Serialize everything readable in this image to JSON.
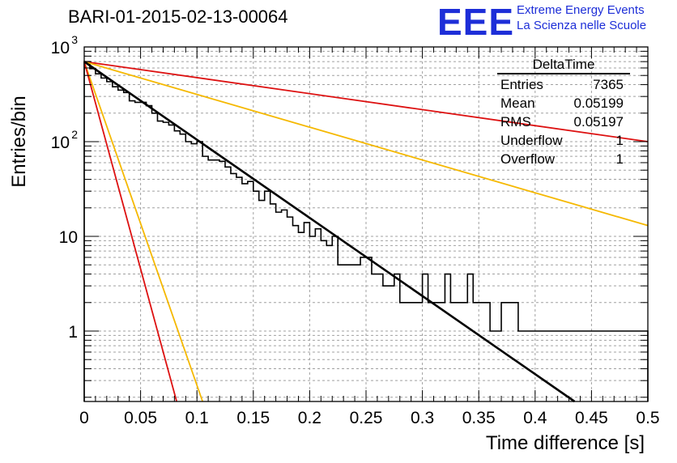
{
  "title": "BARI-01-2015-02-13-00064",
  "logo": {
    "mark": "EEE",
    "line1": "Extreme Energy Events",
    "line2": "La Scienza nelle Scuole"
  },
  "stats": {
    "header": "DeltaTime",
    "rows": [
      {
        "label": "Entries",
        "value": "7365"
      },
      {
        "label": "Mean",
        "value": "0.05199"
      },
      {
        "label": "RMS",
        "value": "0.05197"
      },
      {
        "label": "Underflow",
        "value": "1"
      },
      {
        "label": "Overflow",
        "value": "1"
      }
    ]
  },
  "colors": {
    "histogram": "#000000",
    "red": "#dd1111",
    "orange": "#f5b800",
    "fit": "#000000",
    "grid": "#a0a0a0"
  },
  "chart_data": {
    "type": "line",
    "title": "BARI-01-2015-02-13-00064",
    "xlabel": "Time difference [s]",
    "ylabel": "Entries/bin",
    "xlim": [
      0,
      0.5
    ],
    "ylim": [
      0.17,
      1100
    ],
    "yscale": "log",
    "grid": true,
    "xticks": [
      "0",
      "0.05",
      "0.1",
      "0.15",
      "0.2",
      "0.25",
      "0.3",
      "0.35",
      "0.4",
      "0.45",
      "0.5"
    ],
    "yticks": [
      {
        "value": 1,
        "label": "1"
      },
      {
        "value": 10,
        "label": "10"
      },
      {
        "value": 100,
        "label": "10",
        "exp": "2"
      },
      {
        "value": 1000,
        "label": "10",
        "exp": "3"
      }
    ],
    "histogram": {
      "bin_width": 0.005,
      "counts": [
        700,
        590,
        520,
        470,
        430,
        380,
        350,
        330,
        270,
        260,
        260,
        240,
        200,
        165,
        160,
        150,
        130,
        120,
        100,
        95,
        100,
        70,
        64,
        64,
        62,
        54,
        46,
        42,
        36,
        38,
        30,
        24,
        30,
        22,
        18,
        19,
        16,
        13,
        11,
        14,
        10,
        12,
        9,
        8,
        10,
        5,
        5,
        5,
        5,
        6,
        6,
        4,
        4,
        3,
        3,
        4,
        2,
        2,
        2,
        2,
        4,
        2,
        2,
        2,
        4,
        2,
        2,
        2,
        4,
        2,
        2,
        2,
        1,
        1,
        2,
        2,
        2,
        1,
        1,
        1,
        1,
        1,
        1,
        1,
        1,
        1,
        1,
        1,
        1,
        1,
        1,
        1,
        1,
        1,
        1,
        1,
        1,
        1,
        1,
        1
      ]
    },
    "series": [
      {
        "color": "red",
        "points": [
          [
            0,
            700
          ],
          [
            0.5,
            100
          ]
        ]
      },
      {
        "color": "orange",
        "points": [
          [
            0,
            700
          ],
          [
            0.5,
            13
          ]
        ]
      },
      {
        "color": "orange",
        "points": [
          [
            0,
            700
          ],
          [
            0.105,
            0.17
          ]
        ]
      },
      {
        "color": "red",
        "points": [
          [
            0,
            700
          ],
          [
            0.082,
            0.17
          ]
        ]
      },
      {
        "color": "fit",
        "points": [
          [
            0,
            700
          ],
          [
            0.435,
            0.17
          ]
        ]
      }
    ]
  }
}
